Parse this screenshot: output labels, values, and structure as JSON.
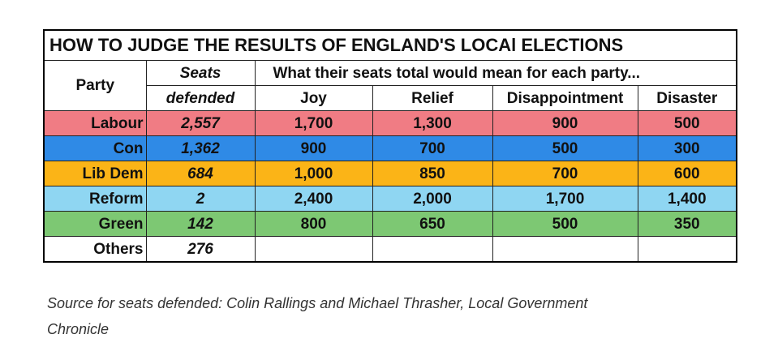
{
  "title": "HOW TO JUDGE THE RESULTS OF ENGLAND'S LOCAl ELECTIONS",
  "headers": {
    "party": "Party",
    "seats_line1": "Seats",
    "seats_line2": "defended",
    "meaning": "What their seats total would  mean for each party...",
    "joy": "Joy",
    "relief": "Relief",
    "disappointment": "Disappointment",
    "disaster": "Disaster"
  },
  "rows": [
    {
      "party": "Labour",
      "seats": "2,557",
      "joy": "1,700",
      "relief": "1,300",
      "disappointment": "900",
      "disaster": "500",
      "color": "#f07c84"
    },
    {
      "party": "Con",
      "seats": "1,362",
      "joy": "900",
      "relief": "700",
      "disappointment": "500",
      "disaster": "300",
      "color": "#2f8ae6"
    },
    {
      "party": "Lib Dem",
      "seats": "684",
      "joy": "1,000",
      "relief": "850",
      "disappointment": "700",
      "disaster": "600",
      "color": "#fbb417"
    },
    {
      "party": "Reform",
      "seats": "2",
      "joy": "2,400",
      "relief": "2,000",
      "disappointment": "1,700",
      "disaster": "1,400",
      "color": "#8fd6f2"
    },
    {
      "party": "Green",
      "seats": "142",
      "joy": "800",
      "relief": "650",
      "disappointment": "500",
      "disaster": "350",
      "color": "#7dc873"
    },
    {
      "party": "Others",
      "seats": "276",
      "joy": "",
      "relief": "",
      "disappointment": "",
      "disaster": "",
      "color": "#ffffff"
    }
  ],
  "source_line1": "Source for seats defended: Colin Rallings and Michael Thrasher, Local Government",
  "source_line2": "Chronicle"
}
